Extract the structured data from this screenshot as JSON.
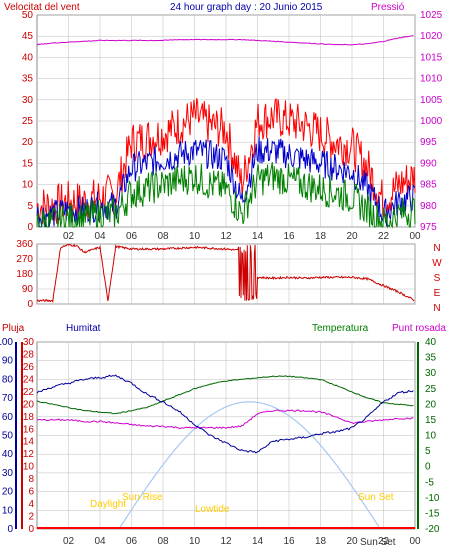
{
  "colors": {
    "background": "#ffffff",
    "frame": "#888888",
    "grid": "#bdbdbd",
    "wind_gust": "#ff0000",
    "wind_avg": "#0000cc",
    "wind_low": "#008000",
    "pressure": "#cc00cc",
    "direction": "#cc0000",
    "humidity": "#000099",
    "temperature": "#006600",
    "dewpoint": "#cc00cc",
    "rain": "#ff0000",
    "solar": "#a8c8f0",
    "sun_label": "#ffcc00"
  },
  "header": {
    "left_label": "Velocitat del vent",
    "title": "24 hour graph day : 20 Junio 2015",
    "right_label": "Pressió"
  },
  "labels_row2": {
    "pluja": "Pluja",
    "humitat": "Humitat",
    "temperatura": "Temperatura",
    "punt_rosada": "Punt rosada"
  },
  "sun_labels": {
    "daylight": "Daylight",
    "sun_rise": "Sun Rise",
    "lowtide": "Lowtide",
    "sun_set_top": "Sun Set",
    "sun_set_bottom": "Sun Set"
  },
  "chart_data": [
    {
      "type": "line",
      "name_hint": "wind",
      "x_tick_labels": [
        "02",
        "04",
        "06",
        "08",
        "10",
        "12",
        "14",
        "16",
        "18",
        "20",
        "22",
        "00"
      ],
      "left_ticks": [
        "0",
        "5",
        "10",
        "15",
        "20",
        "25",
        "30",
        "35",
        "40",
        "45",
        "50"
      ],
      "right_ticks": [
        "975",
        "980",
        "985",
        "990",
        "995",
        "1000",
        "1005",
        "1010",
        "1015",
        "1020",
        "1025"
      ],
      "ylim": [
        0,
        50
      ],
      "y2lim": [
        975,
        1025
      ],
      "hours": [
        0,
        1,
        2,
        3,
        4,
        5,
        6,
        7,
        8,
        9,
        10,
        11,
        12,
        13,
        14,
        15,
        16,
        17,
        18,
        19,
        20,
        21,
        22,
        23,
        24
      ],
      "series": [
        {
          "name": "",
          "color_key": "wind_gust",
          "values": [
            5,
            5,
            6,
            6,
            7,
            8,
            20,
            21,
            22,
            24,
            26,
            24,
            23,
            10,
            25,
            26,
            25,
            24,
            22,
            20,
            19,
            14,
            6,
            10,
            12
          ]
        },
        {
          "name": "",
          "color_key": "wind_avg",
          "values": [
            3,
            3,
            4,
            4,
            5,
            5,
            14,
            15,
            16,
            17,
            18,
            17,
            16,
            6,
            18,
            18,
            17,
            16,
            15,
            14,
            13,
            9,
            3,
            6,
            7
          ]
        },
        {
          "name": "",
          "color_key": "wind_low",
          "values": [
            1,
            1,
            2,
            2,
            3,
            3,
            8,
            9,
            10,
            11,
            12,
            10,
            9,
            3,
            11,
            12,
            11,
            10,
            9,
            8,
            7,
            4,
            1,
            3,
            4
          ]
        }
      ],
      "pressure": {
        "color_key": "pressure",
        "values": [
          1018,
          1018.4,
          1018.6,
          1018.8,
          1019,
          1019,
          1019,
          1019,
          1019,
          1019.2,
          1019.2,
          1019.2,
          1019.2,
          1019.2,
          1019,
          1018.8,
          1018.6,
          1018.4,
          1018.2,
          1018,
          1018,
          1018.2,
          1018.8,
          1019.6,
          1020.2
        ]
      }
    },
    {
      "type": "line",
      "name_hint": "wind direction",
      "left_ticks": [
        "0",
        "90",
        "180",
        "270",
        "360"
      ],
      "right_ticks": [
        "N",
        "W",
        "S",
        "E",
        "N"
      ],
      "ylim": [
        0,
        360
      ],
      "hours": [
        0,
        1,
        1.5,
        2,
        2.5,
        3,
        4,
        4.5,
        5,
        6,
        7,
        8,
        9,
        10,
        11,
        12,
        13,
        13.5,
        14,
        15,
        16,
        17,
        18,
        19,
        20,
        21,
        22,
        23,
        24
      ],
      "values": [
        20,
        20,
        340,
        355,
        350,
        310,
        340,
        20,
        345,
        330,
        330,
        330,
        335,
        340,
        335,
        330,
        320,
        20,
        160,
        155,
        160,
        155,
        160,
        160,
        160,
        150,
        110,
        70,
        20
      ]
    },
    {
      "type": "line",
      "name_hint": "humidity/temperature/dewpoint/rain",
      "x_tick_labels": [
        "02",
        "04",
        "06",
        "08",
        "10",
        "12",
        "14",
        "16",
        "18",
        "20",
        "22",
        "00"
      ],
      "humidity_ticks": [
        "0",
        "10",
        "20",
        "30",
        "40",
        "50",
        "60",
        "70",
        "80",
        "90",
        "100"
      ],
      "rain_ticks": [
        "0",
        "2",
        "4",
        "6",
        "8",
        "10",
        "12",
        "14",
        "16",
        "18",
        "20",
        "22",
        "24",
        "26",
        "28",
        "30"
      ],
      "temp_ticks": [
        "-20",
        "-15",
        "-10",
        "-5",
        "0",
        "5",
        "10",
        "15",
        "20",
        "25",
        "30",
        "35",
        "40"
      ],
      "hours": [
        0,
        1,
        2,
        3,
        4,
        5,
        6,
        7,
        8,
        9,
        10,
        11,
        12,
        13,
        14,
        15,
        16,
        17,
        18,
        19,
        20,
        21,
        22,
        23,
        24
      ],
      "humidity": [
        73,
        76,
        78,
        80,
        81,
        82,
        78,
        72,
        68,
        63,
        56,
        50,
        46,
        42,
        41,
        47,
        48,
        49,
        51,
        52,
        54,
        60,
        68,
        73,
        74
      ],
      "temperature": [
        21,
        20,
        19,
        18,
        17.5,
        17,
        18,
        19,
        21,
        23,
        25,
        26.5,
        27.5,
        28,
        28.5,
        29,
        29,
        28.5,
        28,
        26,
        24,
        22,
        20.5,
        20,
        19.5
      ],
      "dewpoint": [
        15,
        15,
        15,
        14.5,
        14.5,
        14,
        13.5,
        13,
        13,
        12.5,
        12.5,
        12.5,
        12.5,
        13,
        17,
        18,
        18,
        18,
        17.5,
        16,
        14,
        14.5,
        15,
        15.5,
        15.5
      ],
      "solar_ylim_humidity": [
        0,
        100
      ],
      "solar_peak_humidity": 68,
      "solar_start_hour": 5.2,
      "solar_end_hour": 21.8,
      "solar_peak_hour": 13.5,
      "rain": [
        0,
        0,
        0,
        0,
        0,
        0,
        0,
        0,
        0,
        0,
        0,
        0,
        0,
        0,
        0,
        0,
        0,
        0,
        0,
        0,
        0,
        0,
        0,
        0,
        0
      ]
    }
  ]
}
